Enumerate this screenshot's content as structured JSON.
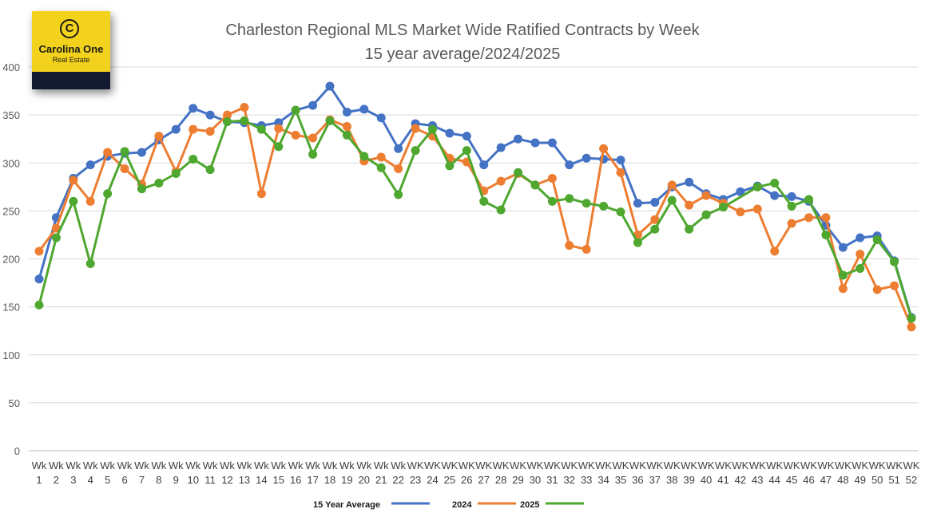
{
  "chart_data": {
    "type": "line",
    "title": "Charleston Regional MLS Market Wide Ratified Contracts by Week",
    "subtitle": "15 year average/2024/2025",
    "xlabel": "",
    "ylabel": "",
    "ylim": [
      0,
      400
    ],
    "yticks": [
      0,
      50,
      100,
      150,
      200,
      250,
      300,
      350,
      400
    ],
    "grid": true,
    "legend": "bottom",
    "categories": [
      "Wk 1",
      "Wk 2",
      "Wk 3",
      "Wk 4",
      "Wk 5",
      "Wk 6",
      "Wk 7",
      "Wk 8",
      "Wk 9",
      "Wk 10",
      "Wk 11",
      "Wk 12",
      "Wk 13",
      "Wk 14",
      "Wk 15",
      "Wk 16",
      "Wk 17",
      "Wk 18",
      "Wk 19",
      "Wk 20",
      "Wk 21",
      "Wk 22",
      "WK 23",
      "WK 24",
      "WK 25",
      "WK 26",
      "WK 27",
      "WK 28",
      "WK 29",
      "WK 30",
      "WK 31",
      "WK 32",
      "WK 33",
      "WK 34",
      "WK 35",
      "WK 36",
      "WK 37",
      "WK 38",
      "WK 39",
      "WK 40",
      "WK 41",
      "WK 42",
      "WK 43",
      "WK 44",
      "WK 45",
      "WK 46",
      "WK 47",
      "WK 48",
      "WK 49",
      "WK 50",
      "WK 51",
      "WK 52"
    ],
    "series": [
      {
        "name": "15 Year Average",
        "color": "#4472c4",
        "values": [
          179,
          243,
          284,
          298,
          307,
          310,
          311,
          324,
          335,
          357,
          350,
          343,
          342,
          339,
          342,
          355,
          360,
          380,
          353,
          356,
          347,
          315,
          341,
          339,
          331,
          328,
          298,
          316,
          325,
          321,
          321,
          298,
          305,
          304,
          303,
          258,
          259,
          275,
          280,
          268,
          262,
          270,
          276,
          266,
          265,
          260,
          235,
          212,
          222,
          224,
          198,
          139
        ]
      },
      {
        "name": "2024",
        "color": "#ed7d31",
        "values": [
          208,
          232,
          282,
          260,
          311,
          294,
          278,
          328,
          291,
          335,
          333,
          350,
          358,
          268,
          336,
          329,
          326,
          345,
          338,
          302,
          306,
          294,
          336,
          328,
          305,
          301,
          271,
          281,
          289,
          277,
          284,
          214,
          210,
          315,
          290,
          225,
          241,
          277,
          256,
          266,
          258,
          249,
          252,
          208,
          237,
          243,
          243,
          169,
          205,
          168,
          172,
          129
        ]
      },
      {
        "name": "2025",
        "color": "#4ea72e",
        "values": [
          152,
          222,
          260,
          195,
          268,
          312,
          273,
          279,
          289,
          304,
          293,
          343,
          344,
          335,
          317,
          355,
          309,
          344,
          329,
          307,
          295,
          267,
          313,
          335,
          297,
          313,
          260,
          251,
          290,
          277,
          260,
          263,
          258,
          255,
          249,
          217,
          231,
          261,
          231,
          246,
          254,
          null,
          275,
          279,
          255,
          262,
          225,
          183,
          190,
          220,
          197,
          138
        ]
      }
    ]
  },
  "logo": {
    "name": "Carolina One",
    "sub": "Real Estate",
    "mark": "C",
    "background": "#f2d21c",
    "band": "#111a2e"
  }
}
